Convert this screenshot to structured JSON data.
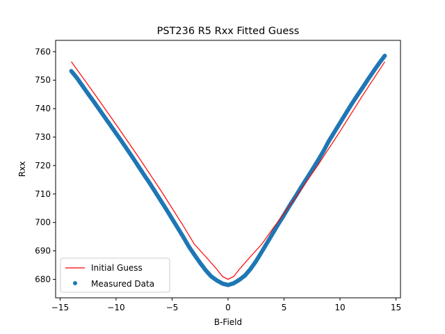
{
  "chart_data": {
    "type": "scatter",
    "title": "PST236 R5 Rxx Fitted Guess",
    "xlabel": "B-Field",
    "ylabel": "Rxx",
    "xlim": [
      -15.4,
      15.4
    ],
    "ylim": [
      673.5,
      764.0
    ],
    "xticks": [
      -15,
      -10,
      -5,
      0,
      5,
      10,
      15
    ],
    "yticks": [
      680,
      690,
      700,
      710,
      720,
      730,
      740,
      750,
      760
    ],
    "grid": false,
    "legend_position": "lower-left",
    "series": [
      {
        "name": "Initial Guess",
        "kind": "line",
        "color": "#ff0000",
        "x": [
          -14,
          -12,
          -10,
          -8,
          -6,
          -4,
          -3,
          -2,
          -1,
          -0.5,
          0,
          0.5,
          1,
          2,
          3,
          4,
          6,
          8,
          10,
          12,
          14
        ],
        "y": [
          756.5,
          745.6,
          734.4,
          723.0,
          711.2,
          698.8,
          692.3,
          688.0,
          683.5,
          681.0,
          680.0,
          681.0,
          683.5,
          688.0,
          692.3,
          697.8,
          708.6,
          720.0,
          732.0,
          744.5,
          756.5
        ]
      },
      {
        "name": "Measured Data",
        "kind": "scatter",
        "color": "#1f77b4",
        "x": [
          -14,
          -13.5,
          -13,
          -12.5,
          -12,
          -11.5,
          -11,
          -10.5,
          -10,
          -9.5,
          -9,
          -8.5,
          -8,
          -7.5,
          -7,
          -6.5,
          -6,
          -5.5,
          -5,
          -4.5,
          -4,
          -3.5,
          -3,
          -2.5,
          -2,
          -1.5,
          -1,
          -0.5,
          0,
          0.5,
          1,
          1.5,
          2,
          2.5,
          3,
          3.5,
          4,
          4.5,
          5,
          5.5,
          6,
          6.5,
          7,
          7.5,
          8,
          8.5,
          9,
          9.5,
          10,
          10.5,
          11,
          11.5,
          12,
          12.5,
          13,
          13.5,
          14
        ],
        "y": [
          753.2,
          750.8,
          748.0,
          745.2,
          742.5,
          739.7,
          736.9,
          734.1,
          731.3,
          728.5,
          725.6,
          722.7,
          719.7,
          716.7,
          713.8,
          710.7,
          707.6,
          704.5,
          701.3,
          698.1,
          694.9,
          691.5,
          688.6,
          685.8,
          683.2,
          681.0,
          679.6,
          678.5,
          678.0,
          678.6,
          679.8,
          681.3,
          683.6,
          686.4,
          689.6,
          692.9,
          696.2,
          699.5,
          702.6,
          705.9,
          709.0,
          712.2,
          715.3,
          718.4,
          721.6,
          724.9,
          728.6,
          731.8,
          735.0,
          738.2,
          741.4,
          744.4,
          747.3,
          750.3,
          753.2,
          756.0,
          758.6
        ]
      }
    ]
  }
}
